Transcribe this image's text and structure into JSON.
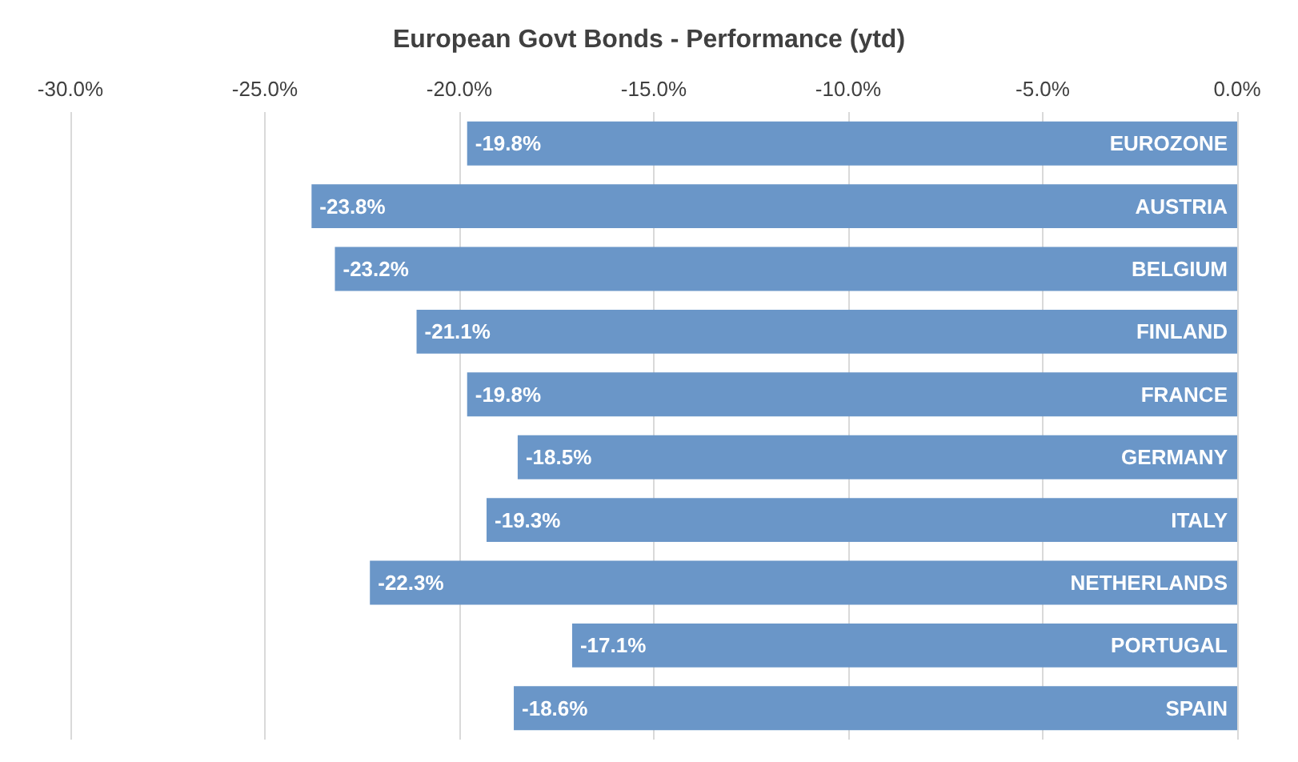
{
  "chart_data": {
    "type": "bar",
    "orientation": "horizontal",
    "title": "European Govt Bonds - Performance (ytd)",
    "categories": [
      "EUROZONE",
      "AUSTRIA",
      "BELGIUM",
      "FINLAND",
      "FRANCE",
      "GERMANY",
      "ITALY",
      "NETHERLANDS",
      "PORTUGAL",
      "SPAIN"
    ],
    "values": [
      -19.8,
      -23.8,
      -23.2,
      -21.1,
      -19.8,
      -18.5,
      -19.3,
      -22.3,
      -17.1,
      -18.6
    ],
    "value_labels": [
      "-19.8%",
      "-23.8%",
      "-23.2%",
      "-21.1%",
      "-19.8%",
      "-18.5%",
      "-19.3%",
      "-22.3%",
      "-17.1%",
      "-18.6%"
    ],
    "color": "#6a96c8",
    "xlim": [
      -30,
      0
    ],
    "xticks": [
      {
        "value": -30,
        "label": "-30.0%"
      },
      {
        "value": -25,
        "label": "-25.0%"
      },
      {
        "value": -20,
        "label": "-20.0%"
      },
      {
        "value": -15,
        "label": "-15.0%"
      },
      {
        "value": -10,
        "label": "-10.0%"
      },
      {
        "value": -5,
        "label": "-5.0%"
      },
      {
        "value": 0,
        "label": "0.0%"
      }
    ],
    "grid": "x"
  }
}
